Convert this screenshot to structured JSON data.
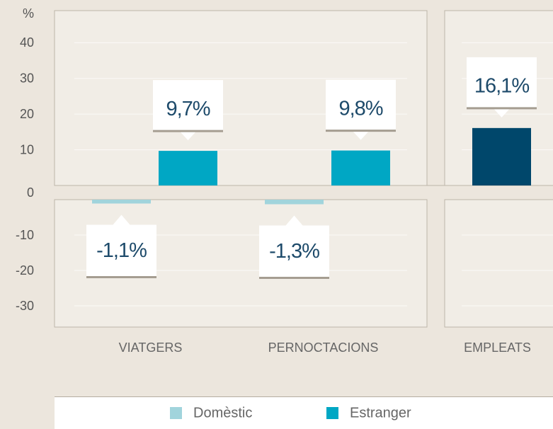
{
  "chart_data": {
    "type": "bar",
    "y_label": "%",
    "categories": [
      "VIATGERS",
      "PERNOCTACIONS",
      "EMPLEATS"
    ],
    "series": [
      {
        "name": "Domèstic",
        "color": "#a1d4dc",
        "values": [
          -1.1,
          -1.3,
          null
        ],
        "value_labels": [
          "-1,1%",
          "-1,3%",
          null
        ]
      },
      {
        "name": "Estranger",
        "color": "#00a7c4",
        "values": [
          9.7,
          9.8,
          null
        ],
        "value_labels": [
          "9,7%",
          "9,8%",
          null
        ]
      },
      {
        "color": "#00476b",
        "values": [
          null,
          null,
          16.1
        ],
        "value_labels": [
          null,
          null,
          "16,1%"
        ]
      }
    ],
    "ylim": [
      -36,
      49
    ],
    "yticks": [
      40,
      30,
      20,
      10,
      0,
      -10,
      -20,
      -30
    ],
    "grid": true
  }
}
